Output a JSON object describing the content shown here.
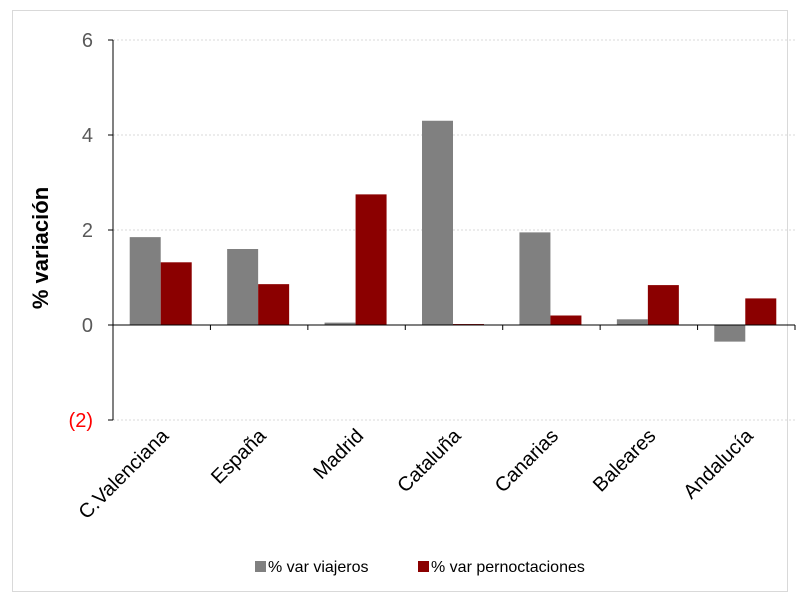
{
  "chart_data": {
    "type": "bar",
    "title": "",
    "xlabel": "",
    "ylabel": "% variación",
    "ylim": [
      -2,
      6
    ],
    "yticks": [
      {
        "value": 6,
        "label": "6"
      },
      {
        "value": 4,
        "label": "4"
      },
      {
        "value": 2,
        "label": "2"
      },
      {
        "value": 0,
        "label": "0"
      },
      {
        "value": -2,
        "label": "(2)"
      }
    ],
    "categories": [
      "C.Valenciana",
      "España",
      "Madrid",
      "Cataluña",
      "Canarias",
      "Baleares",
      "Andalucía"
    ],
    "series": [
      {
        "name": "% var viajeros",
        "color": "#808080",
        "values": [
          1.85,
          1.6,
          0.05,
          4.3,
          1.95,
          0.12,
          -0.35
        ]
      },
      {
        "name": "% var pernoctaciones",
        "color": "#8b0000",
        "values": [
          1.32,
          0.86,
          2.75,
          0.02,
          0.2,
          0.84,
          0.56
        ]
      }
    ],
    "negative_tick_color": "#ff0000",
    "grid": true,
    "legend_position": "bottom"
  }
}
